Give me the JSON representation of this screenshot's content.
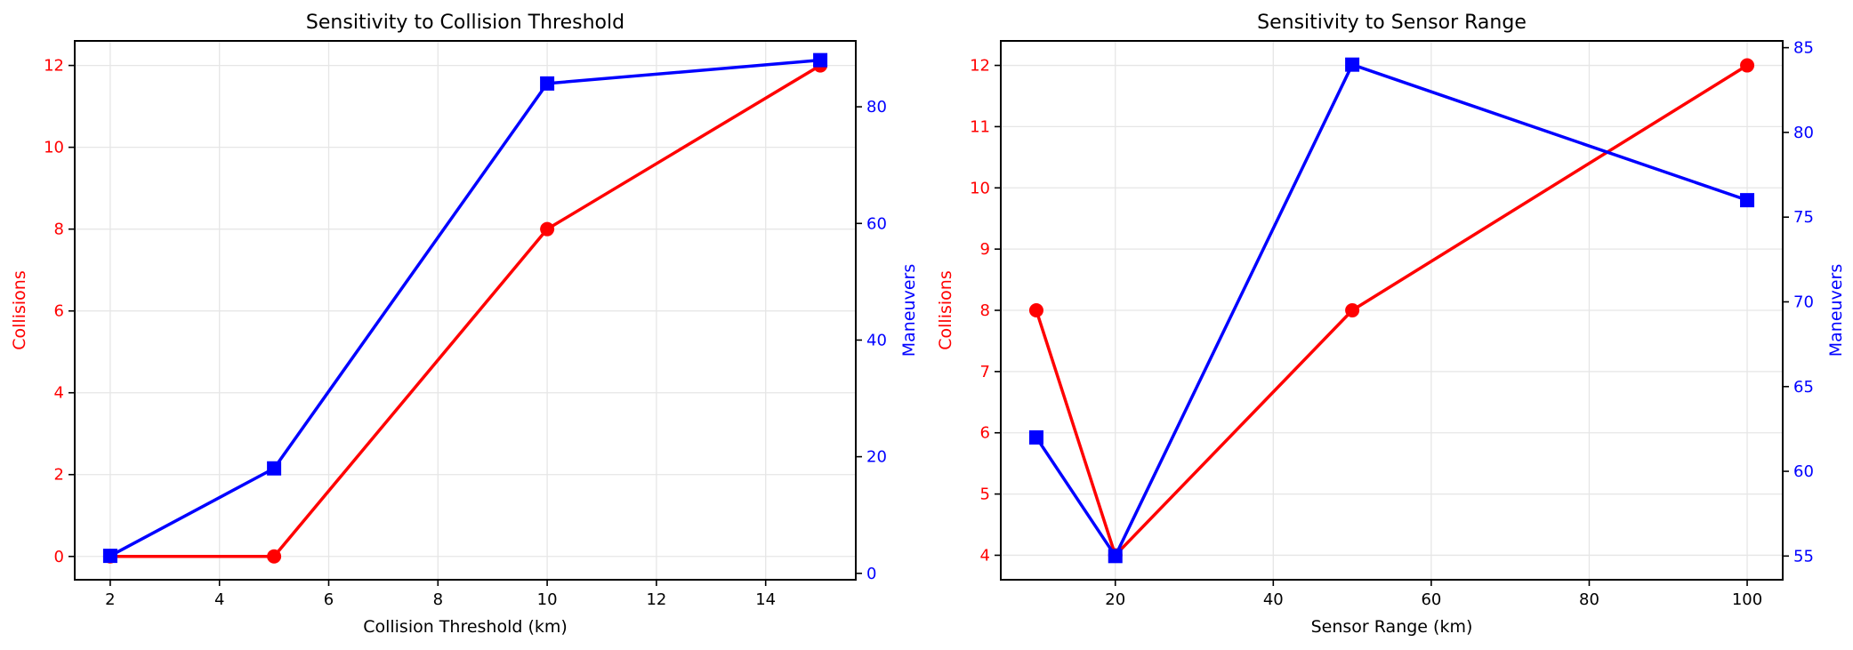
{
  "figure": {
    "background": "#ffffff",
    "colors": {
      "collisions": "#ff0000",
      "maneuvers": "#0000ff",
      "grid": "#e6e6e6"
    }
  },
  "chart_data": [
    {
      "type": "line",
      "title": "Sensitivity to Collision Threshold",
      "xlabel": "Collision Threshold (km)",
      "ylabel": "Collisions",
      "ylabel_right": "Maneuvers",
      "x": [
        2,
        5,
        10,
        15
      ],
      "xticks": [
        2,
        4,
        6,
        8,
        10,
        12,
        14
      ],
      "xlim": [
        1.35,
        15.65
      ],
      "yticks": [
        0,
        2,
        4,
        6,
        8,
        10,
        12
      ],
      "ylim": [
        -0.57,
        12.6
      ],
      "yticks_right": [
        0,
        20,
        40,
        60,
        80
      ],
      "ylim_right": [
        -1.1,
        91.3
      ],
      "grid": true,
      "series": [
        {
          "name": "Collisions",
          "axis": "left",
          "color": "#ff0000",
          "marker": "circle",
          "values": [
            0,
            0,
            8,
            12
          ]
        },
        {
          "name": "Maneuvers",
          "axis": "right",
          "color": "#0000ff",
          "marker": "square",
          "values": [
            3,
            18,
            84,
            88
          ]
        }
      ]
    },
    {
      "type": "line",
      "title": "Sensitivity to Sensor Range",
      "xlabel": "Sensor Range (km)",
      "ylabel": "Collisions",
      "ylabel_right": "Maneuvers",
      "x": [
        10,
        20,
        50,
        100
      ],
      "xticks": [
        20,
        40,
        60,
        80,
        100
      ],
      "xlim": [
        5.5,
        104.5
      ],
      "yticks": [
        4,
        5,
        6,
        7,
        8,
        9,
        10,
        11,
        12
      ],
      "ylim": [
        3.6,
        12.4
      ],
      "yticks_right": [
        55,
        60,
        65,
        70,
        75,
        80,
        85
      ],
      "ylim_right": [
        53.6,
        85.4
      ],
      "grid": true,
      "series": [
        {
          "name": "Collisions",
          "axis": "left",
          "color": "#ff0000",
          "marker": "circle",
          "values": [
            8,
            4,
            8,
            12
          ]
        },
        {
          "name": "Maneuvers",
          "axis": "right",
          "color": "#0000ff",
          "marker": "square",
          "values": [
            62,
            55,
            84,
            76
          ]
        }
      ]
    }
  ]
}
